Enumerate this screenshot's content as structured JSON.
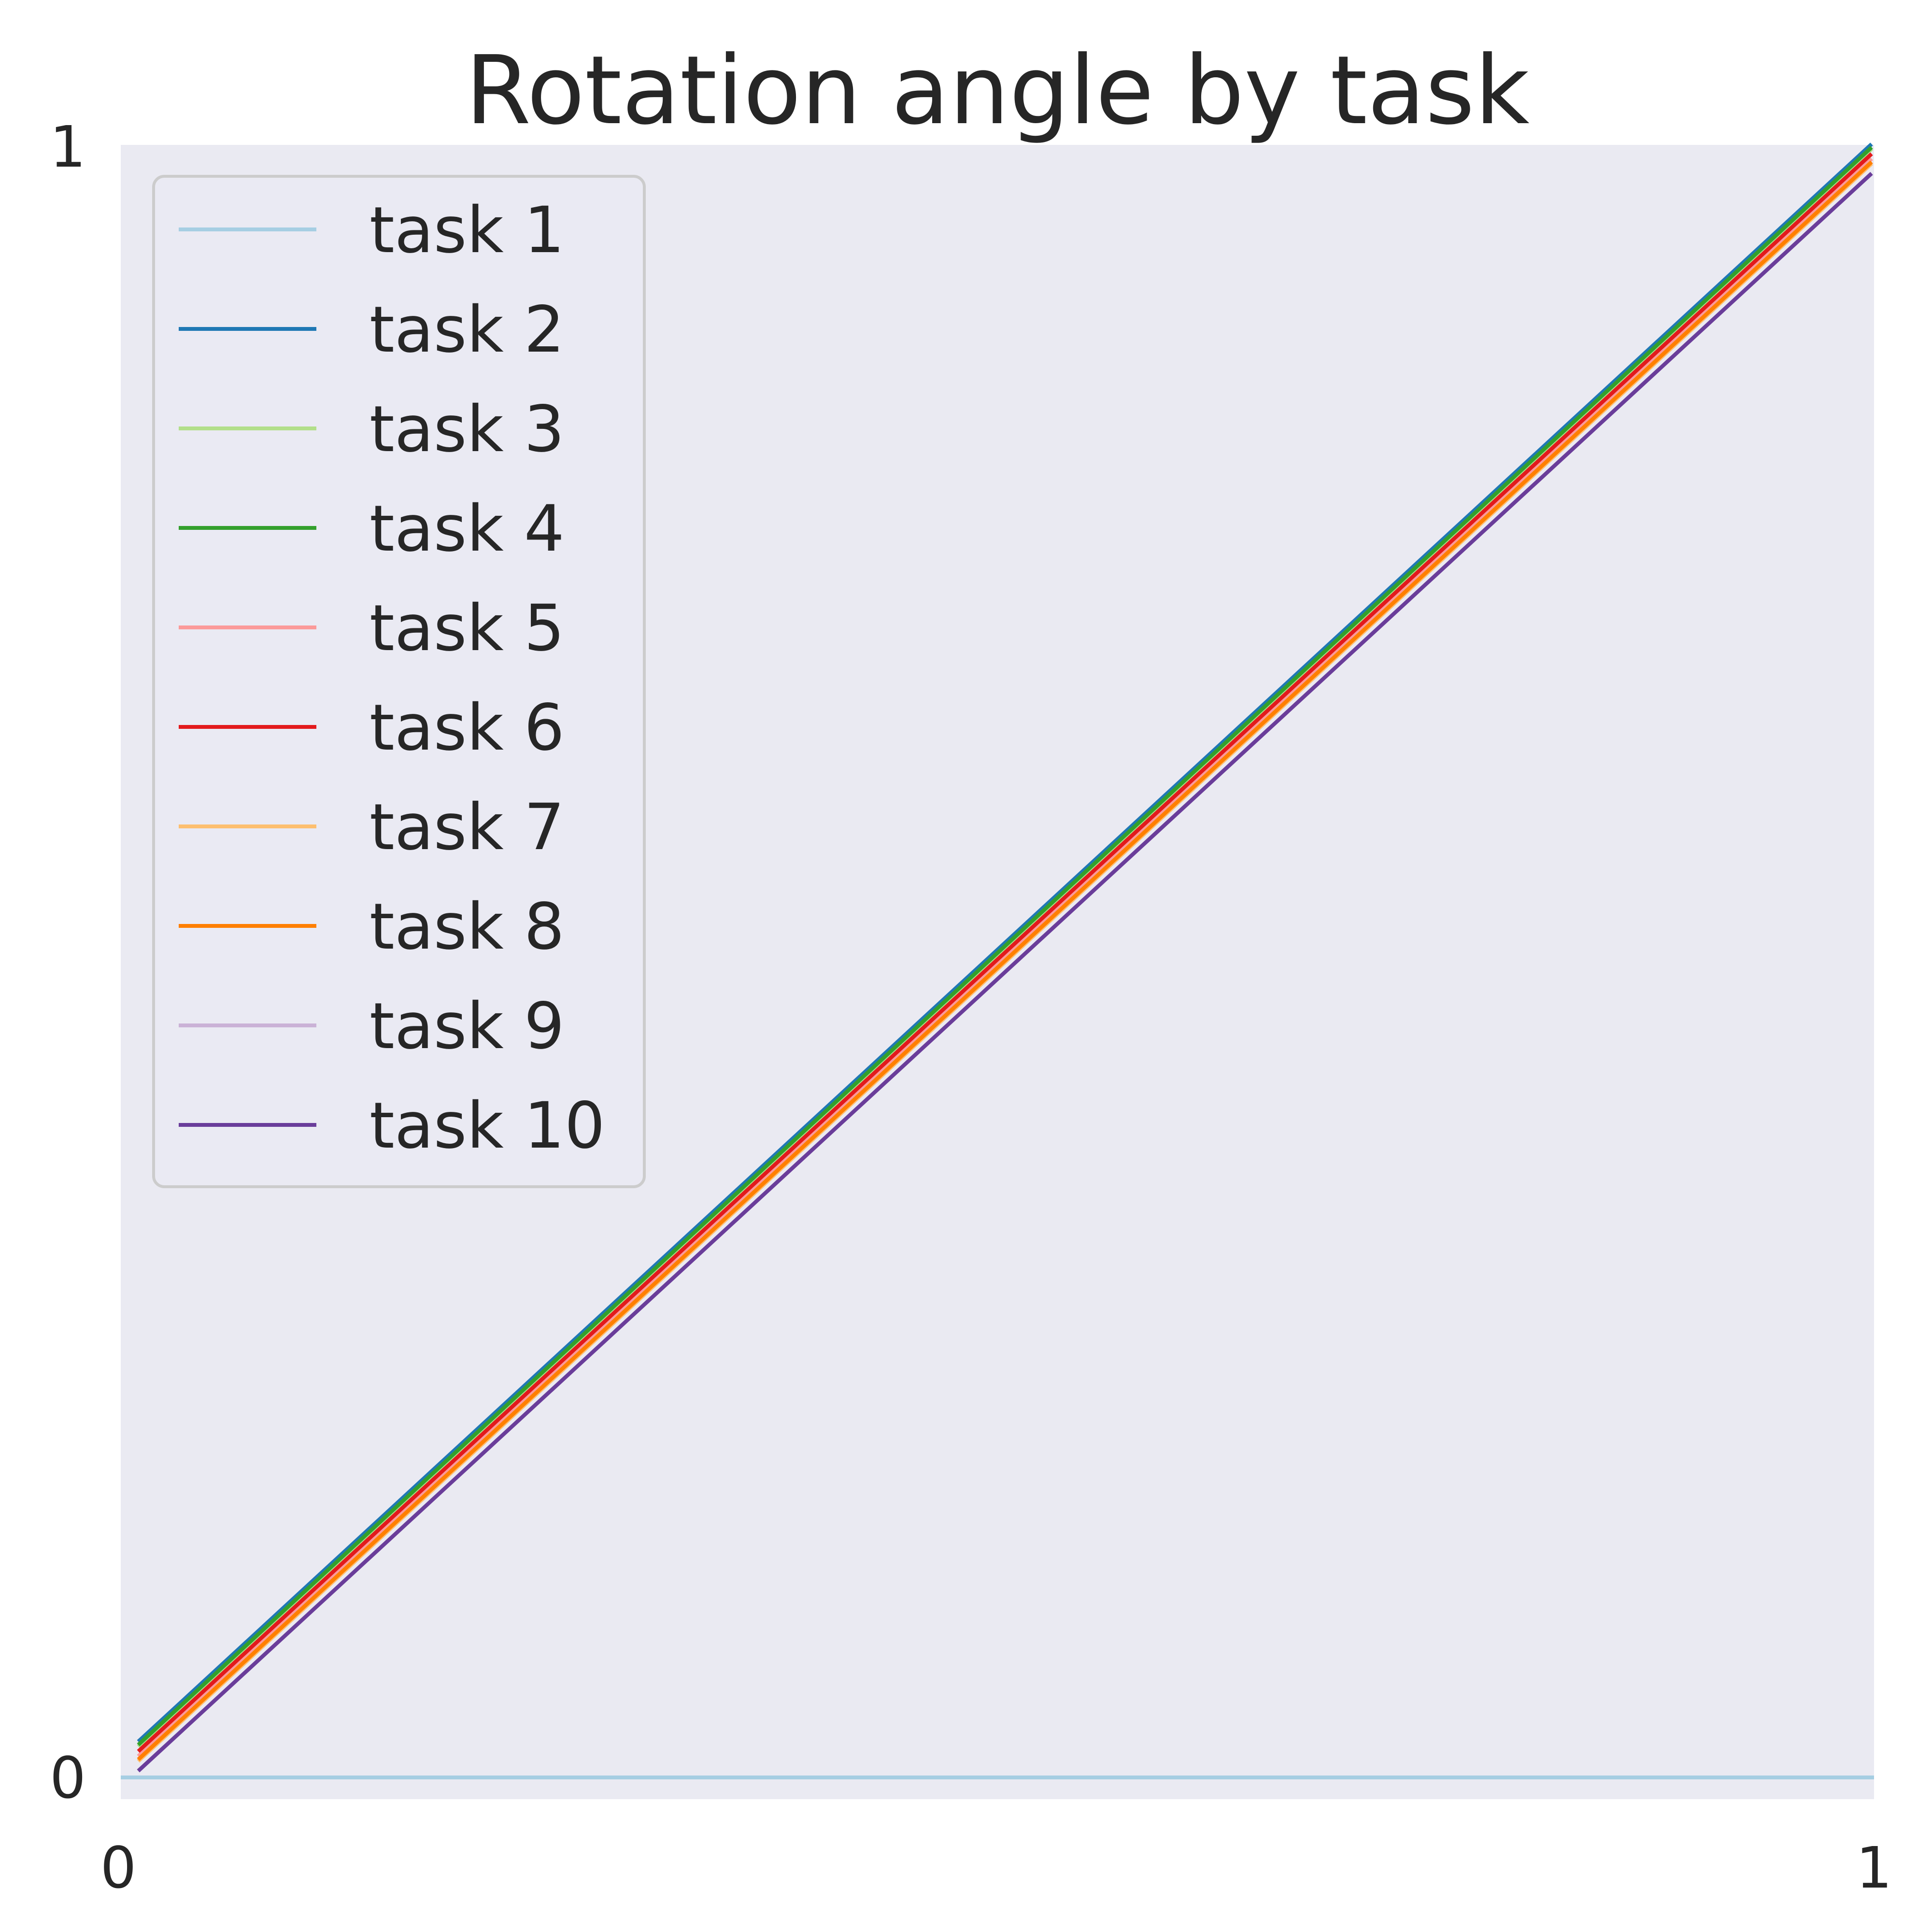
{
  "chart_data": {
    "type": "line",
    "title": "Rotation angle by task",
    "xlabel": "",
    "ylabel": "",
    "xlim": [
      0,
      1
    ],
    "ylim": [
      0,
      1
    ],
    "x_ticks": [
      "0",
      "1"
    ],
    "y_ticks": [
      "0",
      "1"
    ],
    "grid": false,
    "legend_position": "upper-left",
    "background_color": "#eaeaf2",
    "series": [
      {
        "name": "task 1",
        "color": "#a6cee3",
        "x": [
          0.01,
          1.0
        ],
        "y": [
          0.0,
          0.0
        ]
      },
      {
        "name": "task 2",
        "color": "#1f78b4",
        "x": [
          0.01,
          1.0
        ],
        "y": [
          0.022,
          1.002
        ]
      },
      {
        "name": "task 3",
        "color": "#b2df8a",
        "x": [
          0.01,
          1.0
        ],
        "y": [
          0.019,
          0.999
        ]
      },
      {
        "name": "task 4",
        "color": "#33a02c",
        "x": [
          0.01,
          1.0
        ],
        "y": [
          0.02,
          1.0
        ]
      },
      {
        "name": "task 5",
        "color": "#fb9a99",
        "x": [
          0.01,
          1.0
        ],
        "y": [
          0.013,
          0.993
        ]
      },
      {
        "name": "task 6",
        "color": "#e31a1c",
        "x": [
          0.01,
          1.0
        ],
        "y": [
          0.016,
          0.996
        ]
      },
      {
        "name": "task 7",
        "color": "#fdbf6f",
        "x": [
          0.01,
          1.0
        ],
        "y": [
          0.01,
          0.99
        ]
      },
      {
        "name": "task 8",
        "color": "#ff7f00",
        "x": [
          0.01,
          1.0
        ],
        "y": [
          0.011,
          0.991
        ]
      },
      {
        "name": "task 9",
        "color": "#cab2d6",
        "x": [
          0.01,
          1.0
        ],
        "y": [
          0.004,
          0.984
        ]
      },
      {
        "name": "task 10",
        "color": "#6a3d9a",
        "x": [
          0.01,
          1.0
        ],
        "y": [
          0.004,
          0.984
        ]
      }
    ]
  }
}
